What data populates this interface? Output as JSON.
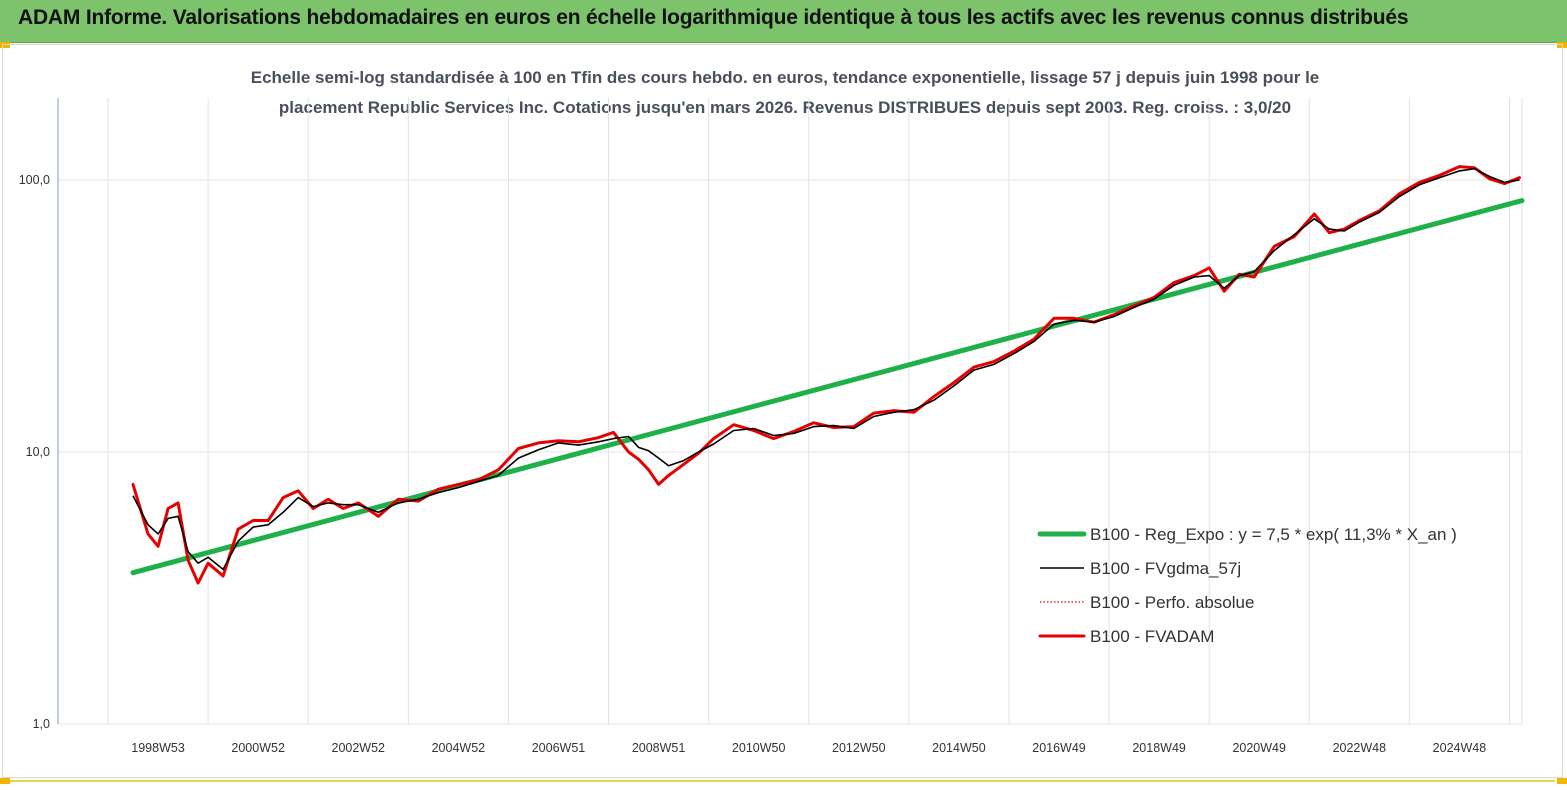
{
  "header": {
    "title": "ADAM Informe. Valorisations hebdomadaires en euros en échelle logarithmique identique à tous les actifs avec les revenus connus distribués"
  },
  "chart_data": {
    "type": "line",
    "title_line1": "Echelle semi-log standardisée à 100 en Tfin des cours hebdo. en euros, tendance exponentielle, lissage 57 j depuis juin 1998 pour le",
    "title_line2": "placement Republic Services Inc. Cotations jusqu'en mars 2026. Revenus DISTRIBUES depuis sept 2003. Reg. croiss. : 3,0/20",
    "y_scale": "log",
    "ylim": [
      1,
      200
    ],
    "y_ticks": [
      {
        "value": 1,
        "label": "1,0"
      },
      {
        "value": 10,
        "label": "10,0"
      },
      {
        "value": 100,
        "label": "100,0"
      }
    ],
    "x_range": [
      1998.0,
      2026.25
    ],
    "x_ticks": [
      {
        "value": 1999.0,
        "label": "1998W53"
      },
      {
        "value": 2001.0,
        "label": "2000W52"
      },
      {
        "value": 2003.0,
        "label": "2002W52"
      },
      {
        "value": 2005.0,
        "label": "2004W52"
      },
      {
        "value": 2007.0,
        "label": "2006W51"
      },
      {
        "value": 2009.0,
        "label": "2008W51"
      },
      {
        "value": 2011.0,
        "label": "2010W50"
      },
      {
        "value": 2013.0,
        "label": "2012W50"
      },
      {
        "value": 2015.0,
        "label": "2014W50"
      },
      {
        "value": 2017.0,
        "label": "2016W49"
      },
      {
        "value": 2019.0,
        "label": "2018W49"
      },
      {
        "value": 2021.0,
        "label": "2020W49"
      },
      {
        "value": 2023.0,
        "label": "2022W48"
      },
      {
        "value": 2025.0,
        "label": "2024W48"
      }
    ],
    "grid": "vertical",
    "legend_position": "right",
    "series": [
      {
        "name": "B100 - Reg_Expo : y = 7,5 * exp( 11,3% *  X_an )",
        "color": "#1fb04a",
        "style": "solid-thick",
        "x": [
          1998.5,
          2026.25
        ],
        "y": [
          3.6,
          84
        ]
      },
      {
        "name": "B100 - FVgdma_57j",
        "color": "#000000",
        "style": "solid-thin",
        "x": [
          1998.5,
          1998.8,
          1999.0,
          1999.2,
          1999.4,
          1999.6,
          1999.8,
          2000.0,
          2000.3,
          2000.6,
          2000.9,
          2001.2,
          2001.5,
          2001.8,
          2002.1,
          2002.4,
          2002.7,
          2003.0,
          2003.4,
          2003.8,
          2004.2,
          2004.6,
          2005.0,
          2005.4,
          2005.8,
          2006.2,
          2006.6,
          2007.0,
          2007.4,
          2007.8,
          2008.1,
          2008.4,
          2008.6,
          2008.8,
          2009.0,
          2009.2,
          2009.5,
          2009.8,
          2010.1,
          2010.5,
          2010.9,
          2011.3,
          2011.7,
          2012.1,
          2012.5,
          2012.9,
          2013.3,
          2013.7,
          2014.1,
          2014.5,
          2014.9,
          2015.3,
          2015.7,
          2016.1,
          2016.5,
          2016.9,
          2017.3,
          2017.7,
          2018.1,
          2018.5,
          2018.9,
          2019.3,
          2019.7,
          2020.0,
          2020.3,
          2020.6,
          2020.9,
          2021.3,
          2021.7,
          2022.1,
          2022.4,
          2022.7,
          2023.0,
          2023.4,
          2023.8,
          2024.2,
          2024.6,
          2025.0,
          2025.3,
          2025.6,
          2025.9,
          2026.2
        ],
        "y": [
          6.9,
          5.4,
          5.0,
          5.7,
          5.8,
          4.3,
          3.9,
          4.1,
          3.7,
          4.7,
          5.3,
          5.4,
          6.0,
          6.8,
          6.3,
          6.5,
          6.4,
          6.4,
          6.0,
          6.5,
          6.7,
          7.1,
          7.4,
          7.8,
          8.2,
          9.5,
          10.2,
          10.8,
          10.6,
          10.9,
          11.2,
          11.4,
          10.4,
          10.1,
          9.5,
          8.9,
          9.3,
          10.0,
          10.7,
          12.0,
          12.2,
          11.5,
          11.7,
          12.4,
          12.5,
          12.2,
          13.5,
          14.0,
          14.3,
          15.5,
          17.5,
          20.0,
          21.0,
          23.0,
          25.5,
          29.5,
          30.5,
          30.0,
          31.5,
          34.0,
          36.5,
          41.0,
          44.0,
          44.5,
          40.0,
          44.5,
          46.0,
          55.0,
          63.0,
          72.0,
          66.0,
          65.0,
          70.0,
          76.0,
          87.0,
          96.0,
          102.0,
          108.0,
          110.0,
          103.0,
          98.0,
          100.0
        ]
      },
      {
        "name": "B100 - Perfo. absolue",
        "color": "#e60000",
        "style": "dotted",
        "x": [
          1998.5,
          1998.8,
          1999.0,
          1999.2,
          1999.4,
          1999.6,
          1999.8,
          2000.0,
          2000.3,
          2000.6,
          2000.9,
          2001.2,
          2001.5,
          2001.8,
          2002.1,
          2002.4,
          2002.7,
          2003.0,
          2003.4,
          2003.8,
          2004.2,
          2004.6,
          2005.0,
          2005.4,
          2005.8,
          2006.2,
          2006.6,
          2007.0,
          2007.4,
          2007.8,
          2008.1,
          2008.4,
          2008.6,
          2008.8,
          2009.0,
          2009.2,
          2009.5,
          2009.8,
          2010.1,
          2010.5,
          2010.9,
          2011.3,
          2011.7,
          2012.1,
          2012.5,
          2012.9,
          2013.3,
          2013.7,
          2014.1,
          2014.5,
          2014.9,
          2015.3,
          2015.7,
          2016.1,
          2016.5,
          2016.9,
          2017.3,
          2017.7,
          2018.1,
          2018.5,
          2018.9,
          2019.3,
          2019.7,
          2020.0,
          2020.3,
          2020.6,
          2020.9,
          2021.3,
          2021.7,
          2022.1,
          2022.4,
          2022.7,
          2023.0,
          2023.4,
          2023.8,
          2024.2,
          2024.6,
          2025.0,
          2025.3,
          2025.6,
          2025.9,
          2026.2
        ],
        "y": [
          7.6,
          5.0,
          4.5,
          6.2,
          6.5,
          4.0,
          3.3,
          3.9,
          3.5,
          5.2,
          5.6,
          5.6,
          6.8,
          7.2,
          6.2,
          6.7,
          6.2,
          6.5,
          5.8,
          6.7,
          6.6,
          7.3,
          7.6,
          7.9,
          8.6,
          10.3,
          10.8,
          11.0,
          10.9,
          11.3,
          11.8,
          10.0,
          9.4,
          8.6,
          7.6,
          8.2,
          9.0,
          9.9,
          11.2,
          12.6,
          12.0,
          11.2,
          11.9,
          12.8,
          12.3,
          12.4,
          13.9,
          14.2,
          14.0,
          16.0,
          18.0,
          20.5,
          21.5,
          23.5,
          26.0,
          31.0,
          31.0,
          30.0,
          32.0,
          34.5,
          37.0,
          42.0,
          44.5,
          47.5,
          39.0,
          45.0,
          44.0,
          57.0,
          62.0,
          75.0,
          64.0,
          66.0,
          71.0,
          77.0,
          89.0,
          98.0,
          104.0,
          112.0,
          111.0,
          101.0,
          97.0,
          102.0
        ]
      },
      {
        "name": "B100 - FVADAM",
        "color": "#e60000",
        "style": "solid-thick",
        "x": [
          1998.5,
          1998.8,
          1999.0,
          1999.2,
          1999.4,
          1999.6,
          1999.8,
          2000.0,
          2000.3,
          2000.6,
          2000.9,
          2001.2,
          2001.5,
          2001.8,
          2002.1,
          2002.4,
          2002.7,
          2003.0,
          2003.4,
          2003.8,
          2004.2,
          2004.6,
          2005.0,
          2005.4,
          2005.8,
          2006.2,
          2006.6,
          2007.0,
          2007.4,
          2007.8,
          2008.1,
          2008.4,
          2008.6,
          2008.8,
          2009.0,
          2009.2,
          2009.5,
          2009.8,
          2010.1,
          2010.5,
          2010.9,
          2011.3,
          2011.7,
          2012.1,
          2012.5,
          2012.9,
          2013.3,
          2013.7,
          2014.1,
          2014.5,
          2014.9,
          2015.3,
          2015.7,
          2016.1,
          2016.5,
          2016.9,
          2017.3,
          2017.7,
          2018.1,
          2018.5,
          2018.9,
          2019.3,
          2019.7,
          2020.0,
          2020.3,
          2020.6,
          2020.9,
          2021.3,
          2021.7,
          2022.1,
          2022.4,
          2022.7,
          2023.0,
          2023.4,
          2023.8,
          2024.2,
          2024.6,
          2025.0,
          2025.3,
          2025.6,
          2025.9,
          2026.2
        ],
        "y": [
          7.6,
          5.0,
          4.5,
          6.2,
          6.5,
          4.0,
          3.3,
          3.9,
          3.5,
          5.2,
          5.6,
          5.6,
          6.8,
          7.2,
          6.2,
          6.7,
          6.2,
          6.5,
          5.8,
          6.7,
          6.6,
          7.3,
          7.6,
          7.9,
          8.6,
          10.3,
          10.8,
          11.0,
          10.9,
          11.3,
          11.8,
          10.0,
          9.4,
          8.6,
          7.6,
          8.2,
          9.0,
          9.9,
          11.2,
          12.6,
          12.0,
          11.2,
          11.9,
          12.8,
          12.3,
          12.4,
          13.9,
          14.2,
          14.0,
          16.0,
          18.0,
          20.5,
          21.5,
          23.5,
          26.0,
          31.0,
          31.0,
          30.0,
          32.0,
          34.5,
          37.0,
          42.0,
          44.5,
          47.5,
          39.0,
          45.0,
          44.0,
          57.0,
          62.0,
          75.0,
          64.0,
          66.0,
          71.0,
          77.0,
          89.0,
          98.0,
          104.0,
          112.0,
          111.0,
          101.0,
          97.0,
          102.0
        ]
      }
    ]
  }
}
